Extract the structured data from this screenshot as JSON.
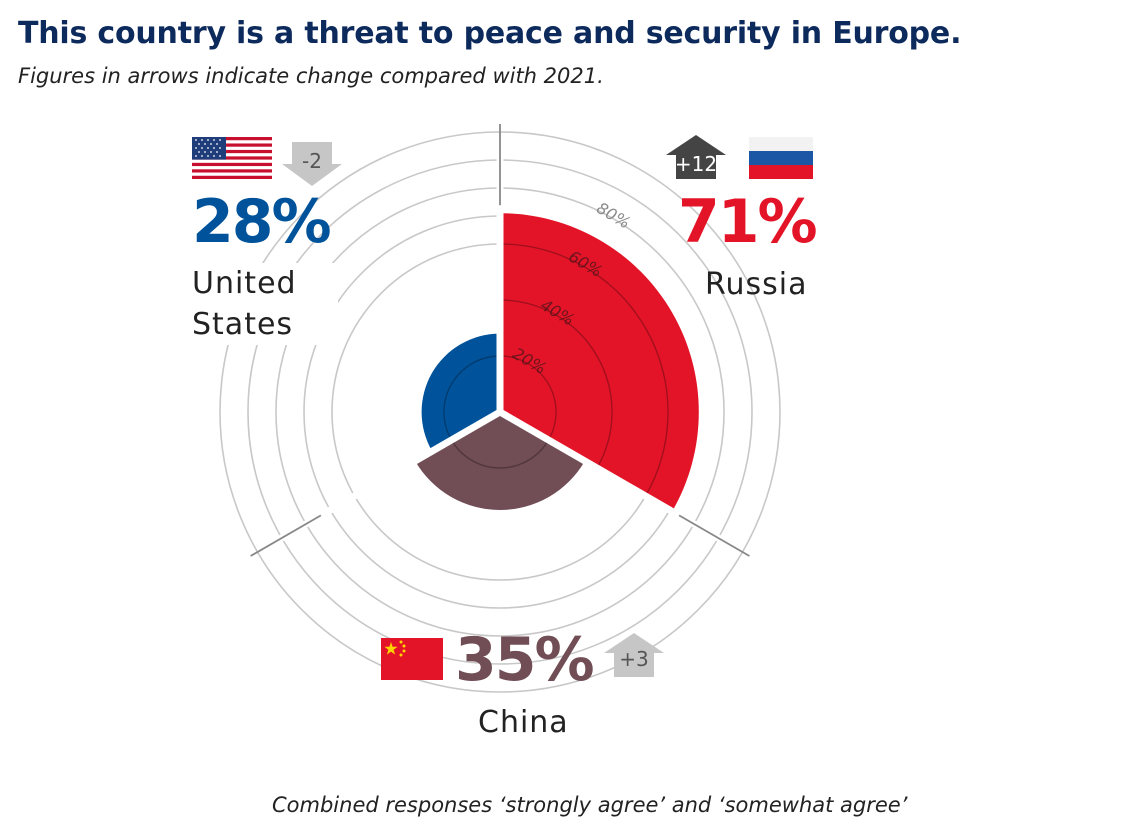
{
  "title": "This country is a threat to peace and security in Europe.",
  "subtitle": "Figures in arrows indicate change compared with 2021.",
  "footnote": "Combined responses ‘strongly agree’ and ‘somewhat agree’",
  "chart_data": {
    "type": "polar-area",
    "categories": [
      "Russia",
      "China",
      "United States"
    ],
    "values": [
      71,
      35,
      28
    ],
    "value_labels": [
      "71%",
      "35%",
      "28%"
    ],
    "change_vs_2021": [
      12,
      3,
      -2
    ],
    "change_labels": [
      "+12",
      "+3",
      "-2"
    ],
    "change_direction": [
      "up",
      "up",
      "down"
    ],
    "radial_ticks": [
      "20%",
      "40%",
      "60%",
      "80%"
    ],
    "radial_tick_values": [
      20,
      40,
      60,
      80
    ],
    "radial_max": 100,
    "grid": true,
    "colors": {
      "Russia": "#e31428",
      "China": "#714d55",
      "United States": "#00539b",
      "grid": "#c8c8c8",
      "arrow_up_dark": "#444444",
      "arrow_light": "#c6c6c6"
    }
  },
  "countries": {
    "us": {
      "name": "United States",
      "pct": "28%",
      "change": "-2",
      "flag_icon": "us-flag-icon"
    },
    "russia": {
      "name": "Russia",
      "pct": "71%",
      "change": "+12",
      "flag_icon": "russia-flag-icon"
    },
    "china": {
      "name": "China",
      "pct": "35%",
      "change": "+3",
      "flag_icon": "china-flag-icon"
    }
  }
}
